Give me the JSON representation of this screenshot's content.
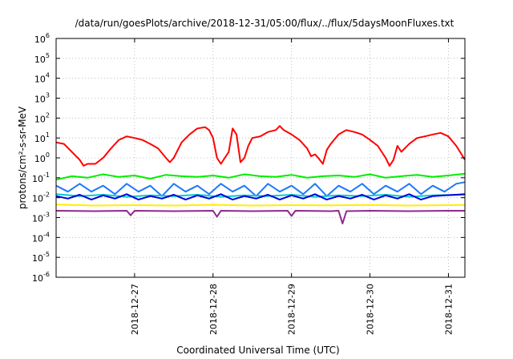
{
  "chart_data": {
    "type": "line",
    "title": "/data/run/goesPlots/archive/2018-12-31/05:00/flux/../flux/5daysMoonFluxes.txt",
    "xlabel": "Coordinated Universal Time (UTC)",
    "ylabel": "protons/cm²-s-sr-MeV",
    "yscale": "log",
    "ylim": [
      1e-06,
      1000000.0
    ],
    "xlim": [
      0,
      5.21
    ],
    "x_ticks": [
      {
        "x": 1.0,
        "label": "2018-12-27"
      },
      {
        "x": 2.0,
        "label": "2018-12-28"
      },
      {
        "x": 3.0,
        "label": "2018-12-29"
      },
      {
        "x": 4.0,
        "label": "2018-12-30"
      },
      {
        "x": 5.0,
        "label": "2018-12-31"
      }
    ],
    "y_ticks": [
      {
        "value": 1e-06,
        "base": "10",
        "exp": "-6"
      },
      {
        "value": 1e-05,
        "base": "10",
        "exp": "-5"
      },
      {
        "value": 0.0001,
        "base": "10",
        "exp": "-4"
      },
      {
        "value": 0.001,
        "base": "10",
        "exp": "-3"
      },
      {
        "value": 0.01,
        "base": "10",
        "exp": "-2"
      },
      {
        "value": 0.1,
        "base": "10",
        "exp": "-1"
      },
      {
        "value": 1,
        "base": "10",
        "exp": "0"
      },
      {
        "value": 10,
        "base": "10",
        "exp": "1"
      },
      {
        "value": 100,
        "base": "10",
        "exp": "2"
      },
      {
        "value": 1000,
        "base": "10",
        "exp": "3"
      },
      {
        "value": 10000,
        "base": "10",
        "exp": "4"
      },
      {
        "value": 100000,
        "base": "10",
        "exp": "5"
      },
      {
        "value": 1000000,
        "base": "10",
        "exp": "6"
      }
    ],
    "grid": true,
    "series": [
      {
        "color": "#ff0000",
        "x": [
          0.0,
          0.1,
          0.2,
          0.3,
          0.35,
          0.4,
          0.5,
          0.6,
          0.7,
          0.8,
          0.9,
          1.0,
          1.1,
          1.2,
          1.3,
          1.4,
          1.45,
          1.5,
          1.6,
          1.7,
          1.8,
          1.9,
          1.95,
          2.0,
          2.05,
          2.1,
          2.15,
          2.2,
          2.25,
          2.3,
          2.35,
          2.4,
          2.45,
          2.5,
          2.6,
          2.7,
          2.8,
          2.85,
          2.9,
          3.0,
          3.1,
          3.2,
          3.25,
          3.3,
          3.35,
          3.4,
          3.45,
          3.5,
          3.6,
          3.7,
          3.8,
          3.9,
          4.0,
          4.1,
          4.2,
          4.25,
          4.3,
          4.35,
          4.4,
          4.5,
          4.6,
          4.7,
          4.8,
          4.9,
          5.0,
          5.1,
          5.21
        ],
        "y": [
          6,
          5,
          2,
          0.8,
          0.4,
          0.5,
          0.5,
          1,
          3,
          8,
          12,
          10,
          8,
          5,
          3,
          1,
          0.6,
          1,
          6,
          15,
          30,
          35,
          25,
          10,
          1,
          0.5,
          1,
          2,
          30,
          15,
          0.6,
          1,
          4,
          10,
          12,
          20,
          25,
          40,
          25,
          15,
          8,
          3,
          1.2,
          1.5,
          0.9,
          0.5,
          2.5,
          5,
          15,
          25,
          20,
          15,
          8,
          4,
          1,
          0.4,
          0.8,
          4,
          2,
          5,
          10,
          12,
          15,
          18,
          12,
          4,
          0.8
        ]
      },
      {
        "color": "#00ee00",
        "x": [
          0.0,
          0.2,
          0.4,
          0.6,
          0.8,
          1.0,
          1.2,
          1.4,
          1.6,
          1.8,
          2.0,
          2.2,
          2.4,
          2.6,
          2.8,
          3.0,
          3.2,
          3.4,
          3.6,
          3.8,
          4.0,
          4.2,
          4.4,
          4.6,
          4.8,
          5.0,
          5.21
        ],
        "y": [
          0.08,
          0.12,
          0.1,
          0.15,
          0.11,
          0.13,
          0.09,
          0.14,
          0.12,
          0.11,
          0.13,
          0.1,
          0.15,
          0.12,
          0.11,
          0.14,
          0.1,
          0.12,
          0.13,
          0.11,
          0.15,
          0.1,
          0.12,
          0.14,
          0.11,
          0.13,
          0.16
        ]
      },
      {
        "color": "#1e78ff",
        "x": [
          0.0,
          0.15,
          0.3,
          0.45,
          0.6,
          0.75,
          0.9,
          1.05,
          1.2,
          1.35,
          1.5,
          1.65,
          1.8,
          1.95,
          2.1,
          2.25,
          2.4,
          2.55,
          2.7,
          2.85,
          3.0,
          3.15,
          3.3,
          3.45,
          3.6,
          3.75,
          3.9,
          4.05,
          4.2,
          4.35,
          4.5,
          4.65,
          4.8,
          4.95,
          5.1,
          5.21
        ],
        "y": [
          0.04,
          0.02,
          0.05,
          0.02,
          0.04,
          0.015,
          0.05,
          0.02,
          0.04,
          0.012,
          0.05,
          0.02,
          0.04,
          0.015,
          0.05,
          0.02,
          0.04,
          0.012,
          0.05,
          0.02,
          0.04,
          0.015,
          0.05,
          0.012,
          0.04,
          0.02,
          0.05,
          0.015,
          0.04,
          0.02,
          0.05,
          0.015,
          0.04,
          0.02,
          0.05,
          0.06
        ]
      },
      {
        "color": "#00cccc",
        "x": [
          0.0,
          0.3,
          0.6,
          0.9,
          1.2,
          1.5,
          1.8,
          2.1,
          2.4,
          2.7,
          3.0,
          3.3,
          3.6,
          3.9,
          4.2,
          4.5,
          4.8,
          5.21
        ],
        "y": [
          0.015,
          0.012,
          0.014,
          0.011,
          0.013,
          0.012,
          0.014,
          0.011,
          0.013,
          0.012,
          0.014,
          0.011,
          0.013,
          0.012,
          0.014,
          0.011,
          0.013,
          0.014
        ]
      },
      {
        "color": "#0000dd",
        "x": [
          0.0,
          0.15,
          0.3,
          0.45,
          0.6,
          0.75,
          0.9,
          1.05,
          1.2,
          1.35,
          1.5,
          1.65,
          1.8,
          1.95,
          2.1,
          2.25,
          2.4,
          2.55,
          2.7,
          2.85,
          3.0,
          3.15,
          3.3,
          3.45,
          3.6,
          3.75,
          3.9,
          4.05,
          4.2,
          4.35,
          4.5,
          4.65,
          4.8,
          4.95,
          5.1,
          5.21
        ],
        "y": [
          0.012,
          0.009,
          0.014,
          0.008,
          0.013,
          0.009,
          0.015,
          0.008,
          0.012,
          0.009,
          0.014,
          0.008,
          0.013,
          0.009,
          0.015,
          0.008,
          0.012,
          0.009,
          0.014,
          0.008,
          0.013,
          0.009,
          0.015,
          0.008,
          0.012,
          0.009,
          0.014,
          0.008,
          0.013,
          0.009,
          0.015,
          0.008,
          0.012,
          0.013,
          0.014,
          0.015
        ]
      },
      {
        "color": "#ffee00",
        "x": [
          0.0,
          0.5,
          1.0,
          1.5,
          2.0,
          2.5,
          3.0,
          3.5,
          4.0,
          4.5,
          5.0,
          5.21
        ],
        "y": [
          0.0045,
          0.004,
          0.0042,
          0.004,
          0.0044,
          0.004,
          0.0042,
          0.0041,
          0.0043,
          0.004,
          0.0042,
          0.0043
        ]
      },
      {
        "color": "#8e2a8e",
        "x": [
          0.0,
          0.5,
          0.9,
          0.95,
          1.0,
          1.5,
          2.0,
          2.05,
          2.1,
          2.5,
          2.95,
          3.0,
          3.05,
          3.5,
          3.6,
          3.65,
          3.7,
          4.0,
          4.5,
          5.0,
          5.21
        ],
        "y": [
          0.0022,
          0.0021,
          0.0022,
          0.0013,
          0.0022,
          0.0021,
          0.0022,
          0.0011,
          0.0022,
          0.0021,
          0.0022,
          0.0012,
          0.0022,
          0.0021,
          0.0022,
          0.0005,
          0.0021,
          0.0022,
          0.0021,
          0.0022,
          0.0022
        ]
      }
    ]
  }
}
